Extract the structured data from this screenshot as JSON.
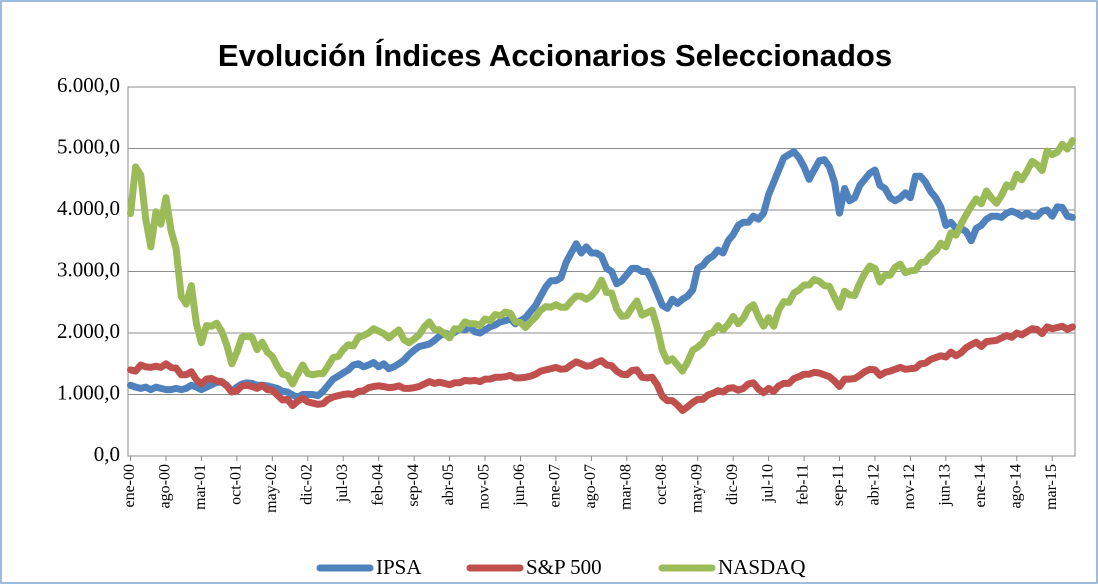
{
  "chart_data": {
    "type": "line",
    "title": "Evolución Índices Accionarios Seleccionados",
    "categories": [
      "ene-00",
      null,
      null,
      null,
      null,
      null,
      null,
      "ago-00",
      null,
      null,
      null,
      null,
      null,
      null,
      "mar-01",
      null,
      null,
      null,
      null,
      null,
      null,
      "oct-01",
      null,
      null,
      null,
      null,
      null,
      null,
      "may-02",
      null,
      null,
      null,
      null,
      null,
      null,
      "dic-02",
      null,
      null,
      null,
      null,
      null,
      null,
      "jul-03",
      null,
      null,
      null,
      null,
      null,
      null,
      "feb-04",
      null,
      null,
      null,
      null,
      null,
      null,
      "sep-04",
      null,
      null,
      null,
      null,
      null,
      null,
      "abr-05",
      null,
      null,
      null,
      null,
      null,
      null,
      "nov-05",
      null,
      null,
      null,
      null,
      null,
      null,
      "jun-06",
      null,
      null,
      null,
      null,
      null,
      null,
      "ene-07",
      null,
      null,
      null,
      null,
      null,
      null,
      "ago-07",
      null,
      null,
      null,
      null,
      null,
      null,
      "mar-08",
      null,
      null,
      null,
      null,
      null,
      null,
      "oct-08",
      null,
      null,
      null,
      null,
      null,
      null,
      "may-09",
      null,
      null,
      null,
      null,
      null,
      null,
      "dic-09",
      null,
      null,
      null,
      null,
      null,
      null,
      "jul-10",
      null,
      null,
      null,
      null,
      null,
      null,
      "feb-11",
      null,
      null,
      null,
      null,
      null,
      null,
      "sep-11",
      null,
      null,
      null,
      null,
      null,
      null,
      "abr-12",
      null,
      null,
      null,
      null,
      null,
      null,
      "nov-12",
      null,
      null,
      null,
      null,
      null,
      null,
      "jun-13",
      null,
      null,
      null,
      null,
      null,
      null,
      "ene-14",
      null,
      null,
      null,
      null,
      null,
      null,
      "ago-14",
      null,
      null,
      null,
      null,
      null,
      null,
      "mar-15",
      null,
      null,
      null,
      null
    ],
    "series": [
      {
        "name": "IPSA",
        "color": "#4f81bd",
        "values": [
          1150,
          1120,
          1100,
          1120,
          1080,
          1120,
          1100,
          1080,
          1080,
          1100,
          1080,
          1100,
          1150,
          1120,
          1080,
          1120,
          1160,
          1200,
          1200,
          1150,
          1050,
          1120,
          1170,
          1190,
          1180,
          1150,
          1150,
          1140,
          1120,
          1100,
          1050,
          1040,
          990,
          960,
          1000,
          1000,
          1000,
          980,
          1050,
          1150,
          1250,
          1300,
          1350,
          1400,
          1480,
          1500,
          1450,
          1480,
          1520,
          1450,
          1500,
          1420,
          1450,
          1500,
          1560,
          1650,
          1720,
          1780,
          1800,
          1820,
          1880,
          1950,
          2000,
          1970,
          2010,
          2070,
          2050,
          2100,
          2020,
          2000,
          2050,
          2100,
          2130,
          2180,
          2200,
          2230,
          2150,
          2200,
          2250,
          2350,
          2450,
          2600,
          2750,
          2850,
          2850,
          2900,
          3150,
          3300,
          3450,
          3300,
          3400,
          3300,
          3300,
          3250,
          3050,
          3000,
          2800,
          2850,
          2950,
          3050,
          3050,
          3000,
          3000,
          2850,
          2650,
          2450,
          2400,
          2550,
          2480,
          2550,
          2600,
          2700,
          3050,
          3100,
          3200,
          3250,
          3350,
          3300,
          3500,
          3600,
          3750,
          3800,
          3800,
          3900,
          3850,
          3950,
          4250,
          4450,
          4650,
          4850,
          4900,
          4950,
          4850,
          4700,
          4500,
          4650,
          4800,
          4820,
          4700,
          4450,
          3950,
          4350,
          4150,
          4200,
          4400,
          4500,
          4600,
          4650,
          4400,
          4350,
          4200,
          4150,
          4200,
          4280,
          4200,
          4550,
          4550,
          4450,
          4300,
          4200,
          4050,
          3750,
          3800,
          3700,
          3700,
          3650,
          3500,
          3700,
          3750,
          3850,
          3900,
          3900,
          3880,
          3950,
          3980,
          3950,
          3900,
          3950,
          3900,
          3900,
          3980,
          4000,
          3900,
          4050,
          4040,
          3900,
          3880
        ]
      },
      {
        "name": "S&P 500",
        "color": "#c0504d",
        "values": [
          1400,
          1380,
          1480,
          1450,
          1440,
          1460,
          1440,
          1500,
          1440,
          1430,
          1320,
          1320,
          1370,
          1240,
          1170,
          1250,
          1260,
          1220,
          1210,
          1140,
          1040,
          1060,
          1140,
          1150,
          1130,
          1100,
          1150,
          1080,
          1070,
          990,
          910,
          920,
          820,
          890,
          940,
          880,
          860,
          840,
          850,
          920,
          960,
          980,
          1000,
          1010,
          1000,
          1050,
          1060,
          1110,
          1130,
          1140,
          1130,
          1110,
          1120,
          1140,
          1100,
          1100,
          1110,
          1130,
          1170,
          1210,
          1180,
          1200,
          1180,
          1160,
          1190,
          1190,
          1230,
          1220,
          1230,
          1210,
          1250,
          1250,
          1280,
          1280,
          1290,
          1310,
          1270,
          1270,
          1280,
          1300,
          1330,
          1380,
          1400,
          1420,
          1440,
          1410,
          1420,
          1480,
          1530,
          1500,
          1460,
          1470,
          1520,
          1550,
          1480,
          1470,
          1380,
          1330,
          1320,
          1390,
          1400,
          1280,
          1270,
          1280,
          1160,
          970,
          900,
          900,
          830,
          740,
          800,
          870,
          920,
          920,
          990,
          1020,
          1060,
          1040,
          1100,
          1110,
          1070,
          1100,
          1170,
          1190,
          1090,
          1030,
          1100,
          1050,
          1140,
          1180,
          1180,
          1260,
          1290,
          1330,
          1330,
          1360,
          1350,
          1320,
          1290,
          1220,
          1130,
          1250,
          1250,
          1260,
          1310,
          1370,
          1410,
          1400,
          1310,
          1360,
          1380,
          1410,
          1440,
          1410,
          1420,
          1430,
          1500,
          1510,
          1570,
          1600,
          1630,
          1610,
          1690,
          1630,
          1680,
          1760,
          1810,
          1850,
          1780,
          1860,
          1870,
          1880,
          1920,
          1960,
          1930,
          2000,
          1970,
          2020,
          2070,
          2060,
          1990,
          2100,
          2070,
          2090,
          2110,
          2060,
          2100
        ]
      },
      {
        "name": "NASDAQ",
        "color": "#9bbb59",
        "values": [
          3940,
          4700,
          4570,
          3860,
          3400,
          3970,
          3770,
          4200,
          3670,
          3370,
          2600,
          2470,
          2770,
          2150,
          1840,
          2120,
          2110,
          2160,
          2030,
          1800,
          1500,
          1690,
          1930,
          1950,
          1930,
          1730,
          1850,
          1690,
          1620,
          1460,
          1330,
          1310,
          1170,
          1330,
          1480,
          1340,
          1320,
          1340,
          1340,
          1460,
          1600,
          1620,
          1730,
          1810,
          1790,
          1930,
          1960,
          2000,
          2070,
          2030,
          1990,
          1920,
          1990,
          2050,
          1890,
          1840,
          1900,
          1970,
          2100,
          2180,
          2060,
          2050,
          1990,
          1920,
          2070,
          2060,
          2180,
          2150,
          2150,
          2120,
          2230,
          2200,
          2300,
          2280,
          2340,
          2320,
          2180,
          2170,
          2090,
          2180,
          2260,
          2370,
          2430,
          2420,
          2460,
          2420,
          2420,
          2520,
          2600,
          2600,
          2550,
          2600,
          2700,
          2860,
          2660,
          2650,
          2390,
          2270,
          2280,
          2410,
          2520,
          2290,
          2330,
          2370,
          2090,
          1720,
          1540,
          1580,
          1480,
          1380,
          1530,
          1720,
          1770,
          1840,
          1980,
          2010,
          2120,
          2050,
          2140,
          2270,
          2150,
          2240,
          2400,
          2460,
          2260,
          2110,
          2250,
          2110,
          2370,
          2510,
          2500,
          2650,
          2700,
          2780,
          2780,
          2870,
          2840,
          2770,
          2760,
          2580,
          2420,
          2680,
          2620,
          2610,
          2810,
          2970,
          3090,
          3050,
          2830,
          2940,
          2940,
          3070,
          3120,
          2980,
          3010,
          3020,
          3140,
          3160,
          3270,
          3330,
          3460,
          3400,
          3630,
          3590,
          3770,
          3920,
          4060,
          4180,
          4100,
          4310,
          4200,
          4110,
          4240,
          4410,
          4370,
          4580,
          4490,
          4630,
          4790,
          4740,
          4640,
          4960,
          4900,
          4940,
          5070,
          4990,
          5130
        ]
      }
    ],
    "ylim": [
      0,
      6000
    ],
    "yticks": [
      {
        "value": 0,
        "label": "0,0"
      },
      {
        "value": 1000,
        "label": "1.000,0"
      },
      {
        "value": 2000,
        "label": "2.000,0"
      },
      {
        "value": 3000,
        "label": "3.000,0"
      },
      {
        "value": 4000,
        "label": "4.000,0"
      },
      {
        "value": 5000,
        "label": "5.000,0"
      },
      {
        "value": 6000,
        "label": "6.000,0"
      }
    ],
    "grid": true,
    "legend": "bottom"
  }
}
